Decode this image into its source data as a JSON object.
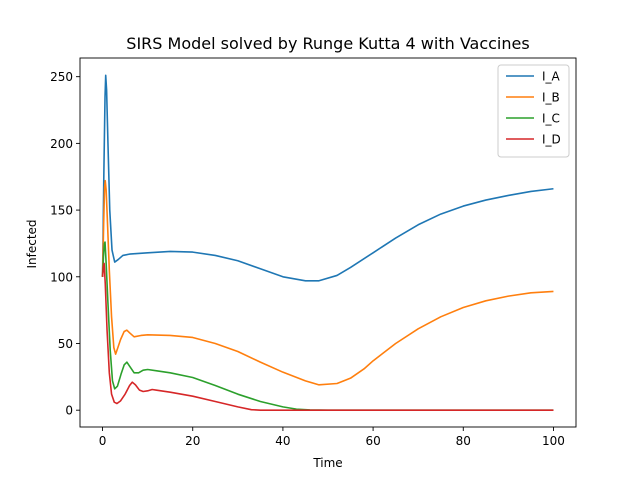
{
  "chart_data": {
    "type": "line",
    "title": "SIRS Model solved by Runge Kutta 4 with Vaccines",
    "xlabel": "Time",
    "ylabel": "Infected",
    "xlim": [
      -5,
      105
    ],
    "ylim": [
      -12.6,
      264
    ],
    "xticks": [
      0,
      20,
      40,
      60,
      80,
      100
    ],
    "yticks": [
      0,
      50,
      100,
      150,
      200,
      250
    ],
    "grid": false,
    "legend_position": "top-right",
    "series": [
      {
        "name": "I_A",
        "color": "#1f77b4",
        "points": [
          [
            0,
            100
          ],
          [
            0.3,
            180
          ],
          [
            0.55,
            235
          ],
          [
            0.7,
            251
          ],
          [
            0.9,
            240
          ],
          [
            1.2,
            200
          ],
          [
            1.6,
            150
          ],
          [
            2.1,
            120
          ],
          [
            2.7,
            111
          ],
          [
            3.5,
            113
          ],
          [
            4.5,
            116
          ],
          [
            6,
            117
          ],
          [
            10,
            118
          ],
          [
            15,
            119
          ],
          [
            20,
            118.5
          ],
          [
            25,
            116
          ],
          [
            30,
            112
          ],
          [
            35,
            106
          ],
          [
            40,
            100
          ],
          [
            45,
            97
          ],
          [
            48,
            97
          ],
          [
            52,
            101
          ],
          [
            55,
            107
          ],
          [
            60,
            118
          ],
          [
            65,
            129
          ],
          [
            70,
            139
          ],
          [
            75,
            147
          ],
          [
            80,
            153
          ],
          [
            85,
            157.5
          ],
          [
            90,
            161
          ],
          [
            95,
            164
          ],
          [
            100,
            166
          ]
        ]
      },
      {
        "name": "I_B",
        "color": "#ff7f0e",
        "points": [
          [
            0,
            100
          ],
          [
            0.25,
            140
          ],
          [
            0.45,
            167
          ],
          [
            0.6,
            172
          ],
          [
            0.8,
            165
          ],
          [
            1.1,
            140
          ],
          [
            1.5,
            105
          ],
          [
            2,
            70
          ],
          [
            2.5,
            47
          ],
          [
            2.9,
            42
          ],
          [
            3.3,
            46
          ],
          [
            4,
            53
          ],
          [
            4.8,
            59
          ],
          [
            5.4,
            60
          ],
          [
            6,
            58
          ],
          [
            7,
            55
          ],
          [
            8.5,
            56
          ],
          [
            10,
            56.5
          ],
          [
            15,
            56
          ],
          [
            20,
            54.5
          ],
          [
            25,
            50
          ],
          [
            30,
            44
          ],
          [
            35,
            36
          ],
          [
            40,
            28.5
          ],
          [
            45,
            22
          ],
          [
            48,
            19
          ],
          [
            52,
            20
          ],
          [
            55,
            24
          ],
          [
            58,
            31
          ],
          [
            60,
            37
          ],
          [
            65,
            50
          ],
          [
            70,
            61
          ],
          [
            75,
            70
          ],
          [
            80,
            77
          ],
          [
            85,
            82
          ],
          [
            90,
            85.5
          ],
          [
            95,
            88
          ],
          [
            100,
            89
          ]
        ]
      },
      {
        "name": "I_C",
        "color": "#2ca02c",
        "points": [
          [
            0,
            100
          ],
          [
            0.2,
            115
          ],
          [
            0.4,
            125
          ],
          [
            0.55,
            126
          ],
          [
            0.8,
            110
          ],
          [
            1.2,
            80
          ],
          [
            1.7,
            45
          ],
          [
            2.2,
            22
          ],
          [
            2.7,
            16
          ],
          [
            3.3,
            18
          ],
          [
            4.1,
            27
          ],
          [
            4.8,
            34
          ],
          [
            5.4,
            36
          ],
          [
            6,
            33
          ],
          [
            7,
            28
          ],
          [
            8,
            28
          ],
          [
            9,
            30
          ],
          [
            10,
            30.5
          ],
          [
            12,
            29.5
          ],
          [
            15,
            28
          ],
          [
            20,
            24.5
          ],
          [
            25,
            18.5
          ],
          [
            30,
            12
          ],
          [
            35,
            6.5
          ],
          [
            40,
            2.5
          ],
          [
            43,
            0.8
          ],
          [
            46,
            0.2
          ],
          [
            50,
            0
          ],
          [
            60,
            0
          ],
          [
            80,
            0
          ],
          [
            100,
            0
          ]
        ]
      },
      {
        "name": "I_D",
        "color": "#d62728",
        "points": [
          [
            0,
            100
          ],
          [
            0.2,
            108
          ],
          [
            0.35,
            110
          ],
          [
            0.6,
            95
          ],
          [
            1,
            60
          ],
          [
            1.5,
            28
          ],
          [
            2,
            12
          ],
          [
            2.6,
            6
          ],
          [
            3.2,
            5
          ],
          [
            4,
            7
          ],
          [
            5,
            12
          ],
          [
            6,
            18.5
          ],
          [
            6.6,
            21
          ],
          [
            7.3,
            19
          ],
          [
            8.2,
            15
          ],
          [
            9,
            14
          ],
          [
            10,
            14.5
          ],
          [
            11,
            15.5
          ],
          [
            12,
            15
          ],
          [
            15,
            13.5
          ],
          [
            20,
            10.5
          ],
          [
            25,
            6.5
          ],
          [
            30,
            2.5
          ],
          [
            33,
            0.4
          ],
          [
            35,
            0
          ],
          [
            50,
            0
          ],
          [
            100,
            0
          ]
        ]
      }
    ]
  }
}
